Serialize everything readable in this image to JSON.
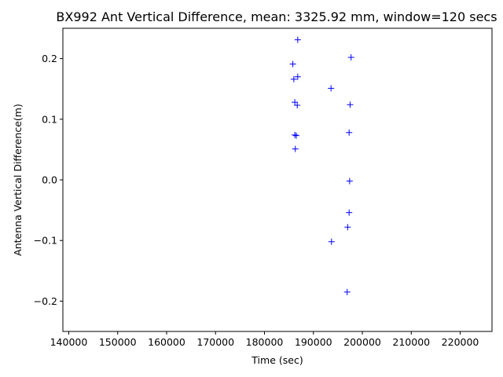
{
  "chart_data": {
    "type": "scatter",
    "title": "BX992 Ant Vertical Difference, mean: 3325.92 mm, window=120 secs",
    "xlabel": "Time (sec)",
    "ylabel": "Antenna Vertical Difference(m)",
    "xlim": [
      138800,
      226500
    ],
    "ylim": [
      -0.25,
      0.25
    ],
    "xticks": [
      140000,
      150000,
      160000,
      170000,
      180000,
      190000,
      200000,
      210000,
      220000
    ],
    "yticks": [
      -0.2,
      -0.1,
      0.0,
      0.1,
      0.2
    ],
    "xtick_labels": [
      "140000",
      "150000",
      "160000",
      "170000",
      "180000",
      "190000",
      "200000",
      "210000",
      "220000"
    ],
    "ytick_labels": [
      "−0.2",
      "−0.1",
      "0.0",
      "0.1",
      "0.2"
    ],
    "grid": false,
    "marker": "+",
    "colors": {
      "marker": "#0000ff",
      "axes": "#000000",
      "background": "#ffffff"
    },
    "series": [
      {
        "points": [
          [
            186800,
            0.231
          ],
          [
            197700,
            0.202
          ],
          [
            185800,
            0.191
          ],
          [
            186800,
            0.17
          ],
          [
            186000,
            0.166
          ],
          [
            193600,
            0.151
          ],
          [
            186200,
            0.128
          ],
          [
            186700,
            0.123
          ],
          [
            197500,
            0.124
          ],
          [
            186200,
            0.074
          ],
          [
            186500,
            0.073
          ],
          [
            197300,
            0.078
          ],
          [
            186300,
            0.051
          ],
          [
            197400,
            -0.002
          ],
          [
            197300,
            -0.054
          ],
          [
            197000,
            -0.078
          ],
          [
            193700,
            -0.102
          ],
          [
            196900,
            -0.185
          ]
        ]
      }
    ]
  }
}
